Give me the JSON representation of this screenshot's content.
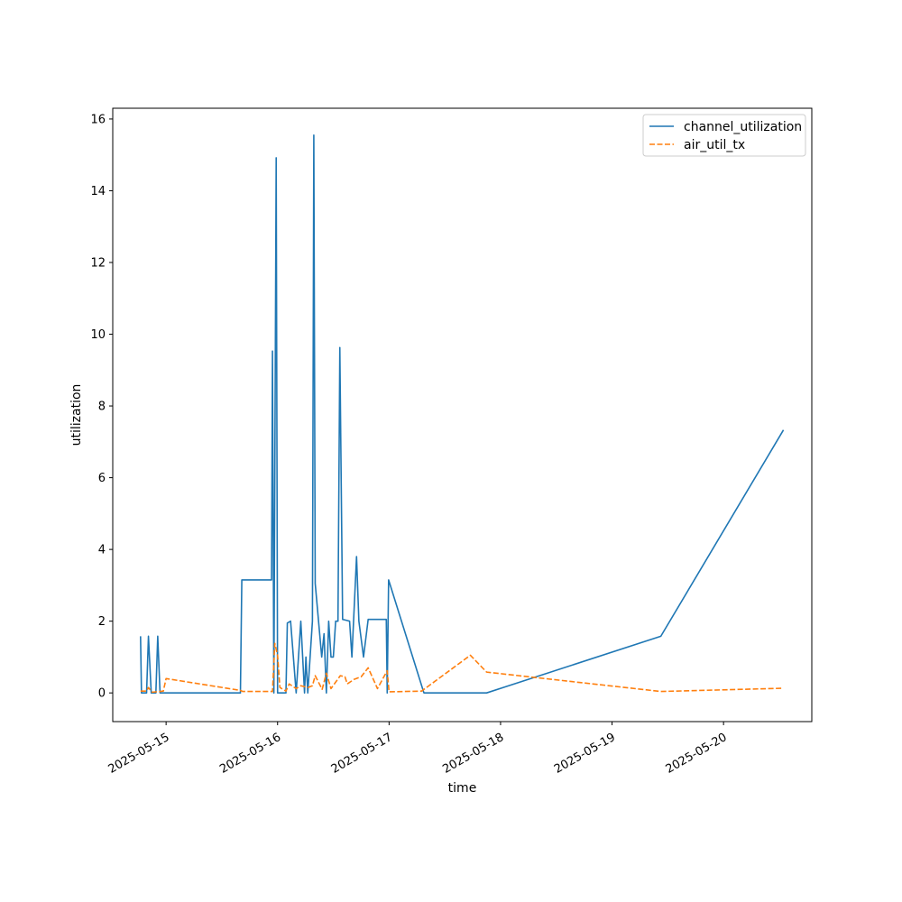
{
  "chart_data": {
    "type": "line",
    "title": "",
    "xlabel": "time",
    "ylabel": "utilization",
    "xlim": [
      "2025-05-14 12:31",
      "2025-05-20 19:00"
    ],
    "ylim": [
      -0.8,
      16.3
    ],
    "x_ticks": [
      "2025-05-15",
      "2025-05-16",
      "2025-05-17",
      "2025-05-18",
      "2025-05-19",
      "2025-05-20"
    ],
    "y_ticks": [
      0,
      2,
      4,
      6,
      8,
      10,
      12,
      14,
      16
    ],
    "grid": false,
    "legend": "top-right",
    "series": [
      {
        "name": "channel_utilization",
        "color": "#1f77b4",
        "dash": "solid",
        "points": [
          [
            "2025-05-14 18:30",
            1.58
          ],
          [
            "2025-05-14 18:42",
            0.0
          ],
          [
            "2025-05-14 19:48",
            0.0
          ],
          [
            "2025-05-14 20:12",
            1.58
          ],
          [
            "2025-05-14 20:48",
            0.0
          ],
          [
            "2025-05-14 21:48",
            0.0
          ],
          [
            "2025-05-14 22:12",
            1.58
          ],
          [
            "2025-05-14 22:42",
            0.0
          ],
          [
            "2025-05-15 16:00",
            0.0
          ],
          [
            "2025-05-15 16:18",
            3.15
          ],
          [
            "2025-05-15 22:42",
            3.15
          ],
          [
            "2025-05-15 22:54",
            9.53
          ],
          [
            "2025-05-15 23:12",
            0.0
          ],
          [
            "2025-05-15 23:42",
            14.92
          ],
          [
            "2025-05-16 00:00",
            0.0
          ],
          [
            "2025-05-16 01:48",
            0.0
          ],
          [
            "2025-05-16 02:06",
            1.95
          ],
          [
            "2025-05-16 02:48",
            2.0
          ],
          [
            "2025-05-16 04:00",
            0.0
          ],
          [
            "2025-05-16 05:00",
            2.0
          ],
          [
            "2025-05-16 05:48",
            0.0
          ],
          [
            "2025-05-16 06:06",
            1.0
          ],
          [
            "2025-05-16 06:30",
            0.0
          ],
          [
            "2025-05-16 07:30",
            2.0
          ],
          [
            "2025-05-16 07:48",
            15.55
          ],
          [
            "2025-05-16 08:06",
            3.05
          ],
          [
            "2025-05-16 09:30",
            1.0
          ],
          [
            "2025-05-16 10:00",
            1.65
          ],
          [
            "2025-05-16 10:30",
            0.0
          ],
          [
            "2025-05-16 11:00",
            2.0
          ],
          [
            "2025-05-16 11:30",
            1.0
          ],
          [
            "2025-05-16 12:00",
            1.0
          ],
          [
            "2025-05-16 12:30",
            2.0
          ],
          [
            "2025-05-16 13:00",
            2.0
          ],
          [
            "2025-05-16 13:24",
            9.63
          ],
          [
            "2025-05-16 14:00",
            2.05
          ],
          [
            "2025-05-16 15:30",
            2.0
          ],
          [
            "2025-05-16 16:00",
            1.0
          ],
          [
            "2025-05-16 17:00",
            3.8
          ],
          [
            "2025-05-16 17:30",
            2.0
          ],
          [
            "2025-05-16 18:30",
            1.0
          ],
          [
            "2025-05-16 19:30",
            2.05
          ],
          [
            "2025-05-16 23:24",
            2.05
          ],
          [
            "2025-05-16 23:36",
            0.0
          ],
          [
            "2025-05-16 23:54",
            3.15
          ],
          [
            "2025-05-17 07:30",
            0.0
          ],
          [
            "2025-05-17 21:00",
            0.0
          ],
          [
            "2025-05-19 10:30",
            1.58
          ],
          [
            "2025-05-20 12:54",
            7.33
          ]
        ]
      },
      {
        "name": "air_util_tx",
        "color": "#ff7f0e",
        "dash": "dashed",
        "points": [
          [
            "2025-05-14 18:30",
            0.05
          ],
          [
            "2025-05-14 19:48",
            0.05
          ],
          [
            "2025-05-14 20:12",
            0.15
          ],
          [
            "2025-05-14 21:00",
            0.02
          ],
          [
            "2025-05-14 23:24",
            0.05
          ],
          [
            "2025-05-15 00:00",
            0.4
          ],
          [
            "2025-05-15 16:00",
            0.07
          ],
          [
            "2025-05-15 16:30",
            0.04
          ],
          [
            "2025-05-15 22:54",
            0.04
          ],
          [
            "2025-05-15 23:24",
            1.38
          ],
          [
            "2025-05-16 00:00",
            1.05
          ],
          [
            "2025-05-16 00:30",
            0.15
          ],
          [
            "2025-05-16 01:48",
            0.05
          ],
          [
            "2025-05-16 02:30",
            0.25
          ],
          [
            "2025-05-16 04:00",
            0.12
          ],
          [
            "2025-05-16 05:00",
            0.2
          ],
          [
            "2025-05-16 06:30",
            0.15
          ],
          [
            "2025-05-16 07:30",
            0.2
          ],
          [
            "2025-05-16 08:06",
            0.48
          ],
          [
            "2025-05-16 08:48",
            0.3
          ],
          [
            "2025-05-16 09:36",
            0.1
          ],
          [
            "2025-05-16 10:30",
            0.55
          ],
          [
            "2025-05-16 11:30",
            0.12
          ],
          [
            "2025-05-16 12:30",
            0.3
          ],
          [
            "2025-05-16 13:30",
            0.48
          ],
          [
            "2025-05-16 14:30",
            0.45
          ],
          [
            "2025-05-16 15:00",
            0.25
          ],
          [
            "2025-05-16 16:30",
            0.38
          ],
          [
            "2025-05-16 18:00",
            0.45
          ],
          [
            "2025-05-16 19:30",
            0.7
          ],
          [
            "2025-05-16 21:30",
            0.12
          ],
          [
            "2025-05-16 23:36",
            0.62
          ],
          [
            "2025-05-17 00:00",
            0.03
          ],
          [
            "2025-05-17 07:00",
            0.05
          ],
          [
            "2025-05-17 17:30",
            1.05
          ],
          [
            "2025-05-17 21:00",
            0.58
          ],
          [
            "2025-05-19 10:30",
            0.04
          ],
          [
            "2025-05-20 12:54",
            0.13
          ]
        ]
      }
    ]
  }
}
